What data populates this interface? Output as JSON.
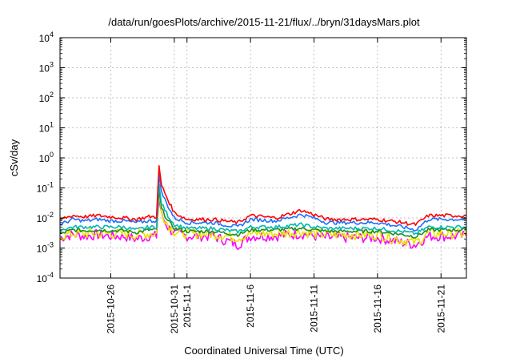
{
  "chart_data": {
    "type": "line",
    "title": "/data/run/goesPlots/archive/2015-11-21/flux/../bryn/31daysMars.plot",
    "xlabel": "Coordinated Universal Time (UTC)",
    "ylabel": "cSv/day",
    "yscale": "log",
    "ylim": [
      0.0001,
      10000
    ],
    "xlim": [
      "2015-10-22",
      "2015-11-23"
    ],
    "grid": true,
    "y_ticks": [
      {
        "value": 0.0001,
        "base": "10",
        "exp": "-4"
      },
      {
        "value": 0.001,
        "base": "10",
        "exp": "-3"
      },
      {
        "value": 0.01,
        "base": "10",
        "exp": "-2"
      },
      {
        "value": 0.1,
        "base": "10",
        "exp": "-1"
      },
      {
        "value": 1,
        "base": "10",
        "exp": "0"
      },
      {
        "value": 10,
        "base": "10",
        "exp": "1"
      },
      {
        "value": 100,
        "base": "10",
        "exp": "2"
      },
      {
        "value": 1000,
        "base": "10",
        "exp": "3"
      },
      {
        "value": 10000,
        "base": "10",
        "exp": "4"
      }
    ],
    "x_ticks": [
      "2015-10-26",
      "2015-10-31",
      "2015-11-1",
      "2015-11-6",
      "2015-11-11",
      "2015-11-16",
      "2015-11-21"
    ],
    "x_tick_dates": [
      "2015-10-26",
      "2015-10-31",
      "2015-11-01",
      "2015-11-06",
      "2015-11-11",
      "2015-11-16",
      "2015-11-21"
    ],
    "series": [
      {
        "color": "#ff0000",
        "values": [
          [
            "2015-10-22",
            0.009
          ],
          [
            "2015-10-23",
            0.012
          ],
          [
            "2015-10-24",
            0.011
          ],
          [
            "2015-10-25",
            0.012
          ],
          [
            "2015-10-26",
            0.011
          ],
          [
            "2015-10-27",
            0.01
          ],
          [
            "2015-10-28",
            0.009
          ],
          [
            "2015-10-29",
            0.011
          ],
          [
            "2015-10-29.6",
            0.011
          ],
          [
            "2015-10-29.8",
            0.5
          ],
          [
            "2015-10-30",
            0.12
          ],
          [
            "2015-10-30.5",
            0.04
          ],
          [
            "2015-10-31",
            0.015
          ],
          [
            "2015-11-01",
            0.009
          ],
          [
            "2015-11-03",
            0.009
          ],
          [
            "2015-11-05",
            0.007
          ],
          [
            "2015-11-06",
            0.012
          ],
          [
            "2015-11-08",
            0.01
          ],
          [
            "2015-11-10",
            0.018
          ],
          [
            "2015-11-11",
            0.013
          ],
          [
            "2015-11-12",
            0.009
          ],
          [
            "2015-11-14",
            0.009
          ],
          [
            "2015-11-16",
            0.009
          ],
          [
            "2015-11-18",
            0.007
          ],
          [
            "2015-11-19",
            0.006
          ],
          [
            "2015-11-20",
            0.012
          ],
          [
            "2015-11-21",
            0.012
          ],
          [
            "2015-11-23",
            0.012
          ]
        ]
      },
      {
        "color": "#1f6fff",
        "values": [
          [
            "2015-10-22",
            0.006
          ],
          [
            "2015-10-23",
            0.009
          ],
          [
            "2015-10-24",
            0.008
          ],
          [
            "2015-10-25",
            0.009
          ],
          [
            "2015-10-26",
            0.008
          ],
          [
            "2015-10-27",
            0.008
          ],
          [
            "2015-10-28",
            0.007
          ],
          [
            "2015-10-29",
            0.008
          ],
          [
            "2015-10-29.6",
            0.008
          ],
          [
            "2015-10-29.8",
            0.3
          ],
          [
            "2015-10-30",
            0.07
          ],
          [
            "2015-10-30.5",
            0.025
          ],
          [
            "2015-10-31",
            0.01
          ],
          [
            "2015-11-01",
            0.007
          ],
          [
            "2015-11-03",
            0.007
          ],
          [
            "2015-11-05",
            0.005
          ],
          [
            "2015-11-06",
            0.009
          ],
          [
            "2015-11-08",
            0.008
          ],
          [
            "2015-11-10",
            0.013
          ],
          [
            "2015-11-11",
            0.01
          ],
          [
            "2015-11-12",
            0.007
          ],
          [
            "2015-11-14",
            0.007
          ],
          [
            "2015-11-16",
            0.007
          ],
          [
            "2015-11-18",
            0.005
          ],
          [
            "2015-11-19",
            0.004
          ],
          [
            "2015-11-20",
            0.009
          ],
          [
            "2015-11-21",
            0.009
          ],
          [
            "2015-11-23",
            0.009
          ]
        ]
      },
      {
        "color": "#00b8b0",
        "values": [
          [
            "2015-10-22",
            0.004
          ],
          [
            "2015-10-23",
            0.005
          ],
          [
            "2015-10-24",
            0.005
          ],
          [
            "2015-10-25",
            0.005
          ],
          [
            "2015-10-26",
            0.005
          ],
          [
            "2015-10-27",
            0.005
          ],
          [
            "2015-10-28",
            0.004
          ],
          [
            "2015-10-29",
            0.005
          ],
          [
            "2015-10-29.6",
            0.005
          ],
          [
            "2015-10-29.8",
            0.12
          ],
          [
            "2015-10-30",
            0.03
          ],
          [
            "2015-10-30.5",
            0.012
          ],
          [
            "2015-10-31",
            0.006
          ],
          [
            "2015-11-01",
            0.0045
          ],
          [
            "2015-11-03",
            0.0045
          ],
          [
            "2015-11-05",
            0.0035
          ],
          [
            "2015-11-06",
            0.005
          ],
          [
            "2015-11-08",
            0.005
          ],
          [
            "2015-11-10",
            0.006
          ],
          [
            "2015-11-11",
            0.005
          ],
          [
            "2015-11-12",
            0.0045
          ],
          [
            "2015-11-14",
            0.0045
          ],
          [
            "2015-11-16",
            0.0045
          ],
          [
            "2015-11-18",
            0.0035
          ],
          [
            "2015-11-19",
            0.003
          ],
          [
            "2015-11-20",
            0.005
          ],
          [
            "2015-11-21",
            0.005
          ],
          [
            "2015-11-23",
            0.005
          ]
        ]
      },
      {
        "color": "#228b22",
        "values": [
          [
            "2015-10-22",
            0.003
          ],
          [
            "2015-10-23",
            0.004
          ],
          [
            "2015-10-24",
            0.0038
          ],
          [
            "2015-10-25",
            0.004
          ],
          [
            "2015-10-26",
            0.0038
          ],
          [
            "2015-10-27",
            0.0038
          ],
          [
            "2015-10-28",
            0.0033
          ],
          [
            "2015-10-29",
            0.004
          ],
          [
            "2015-10-29.6",
            0.004
          ],
          [
            "2015-10-29.8",
            0.08
          ],
          [
            "2015-10-30",
            0.02
          ],
          [
            "2015-10-30.5",
            0.008
          ],
          [
            "2015-10-31",
            0.0045
          ],
          [
            "2015-11-01",
            0.0036
          ],
          [
            "2015-11-03",
            0.0036
          ],
          [
            "2015-11-05",
            0.0028
          ],
          [
            "2015-11-06",
            0.004
          ],
          [
            "2015-11-08",
            0.004
          ],
          [
            "2015-11-10",
            0.0045
          ],
          [
            "2015-11-11",
            0.004
          ],
          [
            "2015-11-12",
            0.0036
          ],
          [
            "2015-11-14",
            0.0036
          ],
          [
            "2015-11-16",
            0.0036
          ],
          [
            "2015-11-18",
            0.0028
          ],
          [
            "2015-11-19",
            0.0024
          ],
          [
            "2015-11-20",
            0.004
          ],
          [
            "2015-11-21",
            0.004
          ],
          [
            "2015-11-23",
            0.004
          ]
        ]
      },
      {
        "color": "#e6e600",
        "values": [
          [
            "2015-10-22",
            0.0025
          ],
          [
            "2015-10-23",
            0.003
          ],
          [
            "2015-10-24",
            0.003
          ],
          [
            "2015-10-25",
            0.003
          ],
          [
            "2015-10-26",
            0.003
          ],
          [
            "2015-10-27",
            0.003
          ],
          [
            "2015-10-28",
            0.0027
          ],
          [
            "2015-10-29",
            0.003
          ],
          [
            "2015-10-29.6",
            0.003
          ],
          [
            "2015-10-29.8",
            0.06
          ],
          [
            "2015-10-30",
            0.015
          ],
          [
            "2015-10-30.5",
            0.006
          ],
          [
            "2015-10-31",
            0.0035
          ],
          [
            "2015-11-01",
            0.003
          ],
          [
            "2015-11-03",
            0.003
          ],
          [
            "2015-11-05",
            0.0022
          ],
          [
            "2015-11-06",
            0.003
          ],
          [
            "2015-11-08",
            0.003
          ],
          [
            "2015-11-10",
            0.0035
          ],
          [
            "2015-11-11",
            0.003
          ],
          [
            "2015-11-12",
            0.0028
          ],
          [
            "2015-11-14",
            0.0028
          ],
          [
            "2015-11-16",
            0.0028
          ],
          [
            "2015-11-18",
            0.0018
          ],
          [
            "2015-11-19",
            0.0015
          ],
          [
            "2015-11-20",
            0.003
          ],
          [
            "2015-11-21",
            0.003
          ],
          [
            "2015-11-23",
            0.003
          ]
        ]
      },
      {
        "color": "#ff00ff",
        "values": [
          [
            "2015-10-22",
            0.0022
          ],
          [
            "2015-10-23",
            0.0028
          ],
          [
            "2015-10-24",
            0.0025
          ],
          [
            "2015-10-25",
            0.0028
          ],
          [
            "2015-10-26",
            0.0025
          ],
          [
            "2015-10-27",
            0.0025
          ],
          [
            "2015-10-28",
            0.002
          ],
          [
            "2015-10-29",
            0.0025
          ],
          [
            "2015-10-29.6",
            0.0025
          ],
          [
            "2015-10-29.8",
            0.05
          ],
          [
            "2015-10-30",
            0.012
          ],
          [
            "2015-10-30.5",
            0.005
          ],
          [
            "2015-10-31",
            0.003
          ],
          [
            "2015-11-01",
            0.0025
          ],
          [
            "2015-11-03",
            0.0025
          ],
          [
            "2015-11-05",
            0.0013
          ],
          [
            "2015-11-06",
            0.0025
          ],
          [
            "2015-11-08",
            0.0025
          ],
          [
            "2015-11-10",
            0.003
          ],
          [
            "2015-11-11",
            0.0025
          ],
          [
            "2015-11-12",
            0.0022
          ],
          [
            "2015-11-14",
            0.0022
          ],
          [
            "2015-11-16",
            0.0022
          ],
          [
            "2015-11-18",
            0.0015
          ],
          [
            "2015-11-19",
            0.0013
          ],
          [
            "2015-11-20",
            0.0025
          ],
          [
            "2015-11-21",
            0.0025
          ],
          [
            "2015-11-23",
            0.0025
          ]
        ]
      }
    ]
  }
}
